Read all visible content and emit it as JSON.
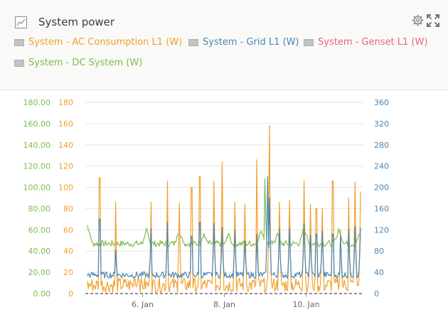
{
  "widget": {
    "title": "System power",
    "settings_icon": "gear-icon",
    "expand_icon": "expand-icon",
    "title_icon": "chart-icon"
  },
  "legend": [
    {
      "label": "System - AC Consumption L1 (W)",
      "color": "#f0a12e"
    },
    {
      "label": "System - Grid L1 (W)",
      "color": "#4b86b4"
    },
    {
      "label": "System - Genset L1 (W)",
      "color": "#e4687a"
    },
    {
      "label": "System - DC System (W)",
      "color": "#7ebd4c"
    }
  ],
  "chart_data": {
    "type": "line",
    "axes": {
      "left_outer": {
        "ticks": [
          "180.00",
          "160.00",
          "140.00",
          "120.00",
          "100.00",
          "80.00",
          "60.00",
          "40.00",
          "20.00",
          "0.00"
        ],
        "color": "#7ebd4c",
        "range": [
          0,
          180
        ]
      },
      "left_inner": {
        "ticks": [
          "180",
          "160",
          "140",
          "120",
          "100",
          "80",
          "60",
          "40",
          "20",
          "0"
        ],
        "color": "#f0a12e",
        "range": [
          0,
          180
        ]
      },
      "right": {
        "ticks": [
          "360",
          "320",
          "280",
          "240",
          "200",
          "160",
          "120",
          "80",
          "40",
          "0"
        ],
        "color": "#4b86b4",
        "range": [
          0,
          360
        ]
      }
    },
    "x_ticks": [
      "6. Jan",
      "8. Jan",
      "10. Jan"
    ],
    "x_range_days": [
      4.6,
      11.4
    ],
    "grid": true,
    "series": [
      {
        "name": "System - AC Consumption L1 (W)",
        "color": "#f0a12e",
        "axis": "left_inner",
        "base": 8,
        "noise": 7,
        "spikes": [
          [
            4.95,
            109
          ],
          [
            5.35,
            86
          ],
          [
            5.8,
            16
          ],
          [
            5.9,
            16
          ],
          [
            6.2,
            86
          ],
          [
            6.6,
            106
          ],
          [
            6.9,
            85
          ],
          [
            7.2,
            100
          ],
          [
            7.4,
            110
          ],
          [
            7.75,
            106
          ],
          [
            7.95,
            124
          ],
          [
            8.25,
            86
          ],
          [
            8.5,
            84
          ],
          [
            8.8,
            126
          ],
          [
            9.1,
            158
          ],
          [
            9.35,
            86
          ],
          [
            9.6,
            88
          ],
          [
            9.95,
            106
          ],
          [
            10.1,
            84
          ],
          [
            10.25,
            80
          ],
          [
            10.4,
            80
          ],
          [
            10.65,
            106
          ],
          [
            10.85,
            60
          ],
          [
            11.05,
            90
          ],
          [
            11.2,
            105
          ],
          [
            11.32,
            96
          ]
        ]
      },
      {
        "name": "System - Grid L1 (W)",
        "color": "#4b86b4",
        "axis": "right",
        "base": 35,
        "noise": 6,
        "spikes": [
          [
            4.95,
            140
          ],
          [
            5.35,
            82
          ],
          [
            6.2,
            122
          ],
          [
            6.6,
            134
          ],
          [
            7.2,
            108
          ],
          [
            7.4,
            134
          ],
          [
            7.75,
            132
          ],
          [
            7.95,
            124
          ],
          [
            8.25,
            118
          ],
          [
            8.5,
            100
          ],
          [
            8.8,
            112
          ],
          [
            9.05,
            220
          ],
          [
            9.1,
            180
          ],
          [
            9.35,
            122
          ],
          [
            9.6,
            124
          ],
          [
            9.95,
            132
          ],
          [
            10.1,
            110
          ],
          [
            10.25,
            112
          ],
          [
            10.4,
            118
          ],
          [
            10.65,
            112
          ],
          [
            10.85,
            110
          ],
          [
            11.05,
            120
          ],
          [
            11.2,
            126
          ],
          [
            11.32,
            124
          ]
        ]
      },
      {
        "name": "System - DC System (W)",
        "color": "#7ebd4c",
        "axis": "left_outer",
        "base": 47,
        "noise": 3,
        "humps": [
          [
            4.65,
            64,
            0.12
          ],
          [
            6.1,
            60,
            0.1
          ],
          [
            6.9,
            58,
            0.12
          ],
          [
            7.5,
            55,
            0.1
          ],
          [
            8.1,
            57,
            0.08
          ],
          [
            8.9,
            60,
            0.1
          ],
          [
            9.3,
            58,
            0.08
          ],
          [
            9.95,
            62,
            0.12
          ],
          [
            10.8,
            60,
            0.12
          ],
          [
            11.3,
            56,
            0.08
          ]
        ],
        "spikes": [
          [
            9.0,
            108
          ]
        ]
      }
    ]
  }
}
